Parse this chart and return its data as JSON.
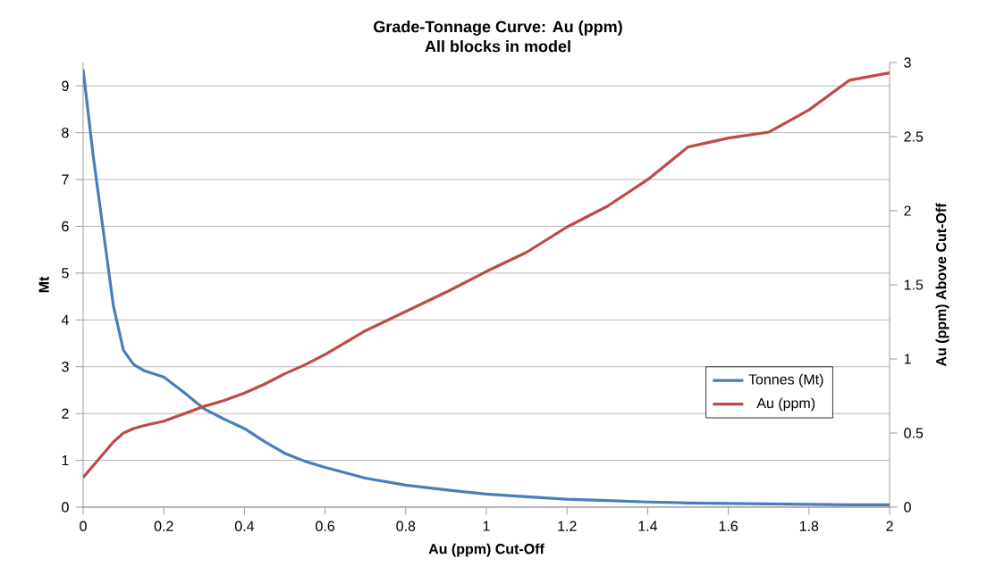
{
  "chart_data": {
    "type": "line",
    "title": "Grade-Tonnage Curve: Au (ppm)",
    "subtitle": "All blocks in model",
    "xlabel": "Au (ppm) Cut-Off",
    "ylabel": "Mt",
    "y2label": "Au (ppm) Above Cut-Off",
    "x": [
      0,
      0.025,
      0.05,
      0.075,
      0.1,
      0.125,
      0.15,
      0.2,
      0.25,
      0.3,
      0.35,
      0.4,
      0.45,
      0.5,
      0.55,
      0.6,
      0.7,
      0.8,
      0.9,
      1.0,
      1.1,
      1.2,
      1.3,
      1.4,
      1.5,
      1.6,
      1.7,
      1.8,
      1.9,
      2.0
    ],
    "series": [
      {
        "name": "Tonnes (Mt)",
        "color": "#4a7ebb",
        "axis": "y",
        "values": [
          9.35,
          7.5,
          5.9,
          4.3,
          3.35,
          3.05,
          2.92,
          2.78,
          2.45,
          2.1,
          1.88,
          1.68,
          1.4,
          1.15,
          0.98,
          0.85,
          0.62,
          0.47,
          0.37,
          0.28,
          0.22,
          0.17,
          0.14,
          0.11,
          0.09,
          0.08,
          0.07,
          0.06,
          0.05,
          0.05
        ]
      },
      {
        "name": "Au (ppm)",
        "color": "#be4b48",
        "axis": "y2",
        "values": [
          0.2,
          0.28,
          0.36,
          0.44,
          0.5,
          0.53,
          0.55,
          0.58,
          0.63,
          0.68,
          0.72,
          0.77,
          0.83,
          0.9,
          0.96,
          1.03,
          1.19,
          1.32,
          1.45,
          1.59,
          1.72,
          1.89,
          2.03,
          2.21,
          2.43,
          2.49,
          2.53,
          2.68,
          2.88,
          2.93
        ]
      }
    ],
    "xlim": [
      0,
      2
    ],
    "xticks": [
      0,
      0.2,
      0.4,
      0.6,
      0.8,
      1,
      1.2,
      1.4,
      1.6,
      1.8,
      2
    ],
    "ylim": [
      0,
      9.5
    ],
    "yticks": [
      0,
      1,
      2,
      3,
      4,
      5,
      6,
      7,
      8,
      9
    ],
    "y2lim": [
      0,
      3
    ],
    "y2ticks": [
      0,
      0.5,
      1,
      1.5,
      2,
      2.5,
      3
    ],
    "grid": "y",
    "legend": "bottom right",
    "marker": "none",
    "line_style": "solid"
  }
}
